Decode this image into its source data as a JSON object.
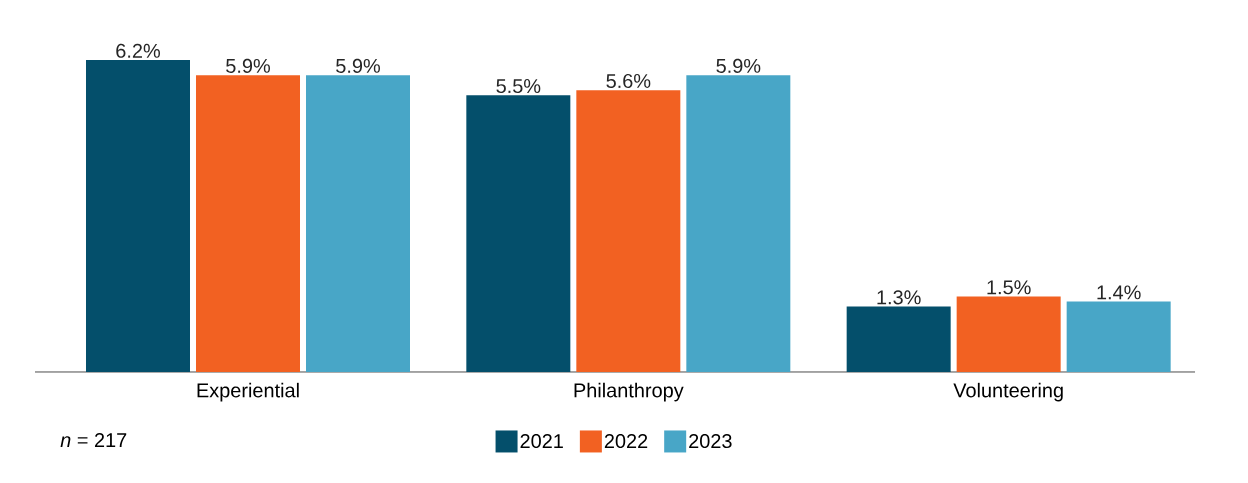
{
  "chart_data": {
    "type": "bar",
    "categories": [
      "Experiential",
      "Philanthropy",
      "Volunteering"
    ],
    "series": [
      {
        "name": "2021",
        "color": "#044f6b",
        "values": [
          6.2,
          5.5,
          1.3
        ],
        "value_labels": [
          "6.2%",
          "5.5%",
          "1.3%"
        ]
      },
      {
        "name": "2022",
        "color": "#f26122",
        "values": [
          5.9,
          5.6,
          1.5
        ],
        "value_labels": [
          "5.9%",
          "5.6%",
          "1.5%"
        ]
      },
      {
        "name": "2023",
        "color": "#48a6c7",
        "values": [
          5.9,
          5.9,
          1.4
        ],
        "value_labels": [
          "5.9%",
          "5.9%",
          "1.4%"
        ]
      }
    ],
    "legend": "bottom",
    "annotations": [
      "*n* = 217"
    ]
  }
}
